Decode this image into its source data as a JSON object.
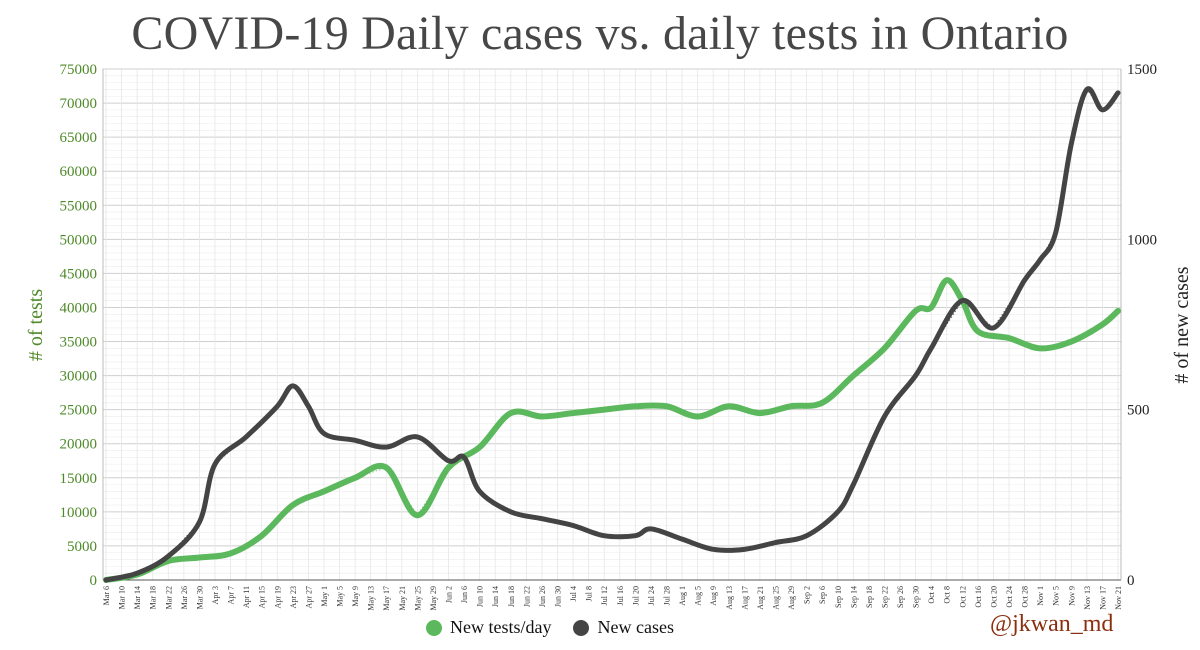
{
  "chart_data": {
    "type": "line",
    "title": "COVID-19 Daily cases vs. daily tests in Ontario",
    "ylabel_left": "# of tests",
    "ylabel_right": "# of new cases",
    "ylim_left": [
      0,
      75000
    ],
    "ylim_right": [
      0,
      1500
    ],
    "yticks_left": [
      "0",
      "5000",
      "10000",
      "15000",
      "20000",
      "25000",
      "30000",
      "35000",
      "40000",
      "45000",
      "50000",
      "55000",
      "60000",
      "65000",
      "70000",
      "75000"
    ],
    "yticks_right": [
      "0",
      "500",
      "1000",
      "1500"
    ],
    "x_labels": [
      "Mar 6",
      "Mar 10",
      "Mar 14",
      "Mar 18",
      "Mar 22",
      "Mar 26",
      "Mar 30",
      "Apr 3",
      "Apr 7",
      "Apr 11",
      "Apr 15",
      "Apr 19",
      "Apr 23",
      "Apr 27",
      "May 1",
      "May 5",
      "May 9",
      "May 13",
      "May 17",
      "May 21",
      "May 25",
      "May 29",
      "Jun 2",
      "Jun 6",
      "Jun 10",
      "Jun 14",
      "Jun 18",
      "Jun 22",
      "Jun 26",
      "Jun 30",
      "Jul 4",
      "Jul 8",
      "Jul 12",
      "Jul 16",
      "Jul 20",
      "Jul 24",
      "Jul 28",
      "Aug 1",
      "Aug 5",
      "Aug 9",
      "Aug 13",
      "Aug 17",
      "Aug 21",
      "Aug 25",
      "Aug 29",
      "Sep 2",
      "Sep 6",
      "Sep 10",
      "Sep 14",
      "Sep 18",
      "Sep 22",
      "Sep 26",
      "Sep 30",
      "Oct 4",
      "Oct 8",
      "Oct 12",
      "Oct 16",
      "Oct 20",
      "Oct 24",
      "Oct 28",
      "Nov 1",
      "Nov 5",
      "Nov 9",
      "Nov 13",
      "Nov 17",
      "Nov 21"
    ],
    "grid": true,
    "legend_position": "bottom",
    "series": [
      {
        "name": "New tests/day",
        "axis": "left",
        "color": "#5cb85c",
        "dates": [
          "Mar 6",
          "Mar 14",
          "Mar 22",
          "Mar 30",
          "Apr 7",
          "Apr 15",
          "Apr 23",
          "May 1",
          "May 9",
          "May 17",
          "May 25",
          "Jun 2",
          "Jun 10",
          "Jun 18",
          "Jun 26",
          "Jul 4",
          "Jul 12",
          "Jul 20",
          "Jul 28",
          "Aug 5",
          "Aug 13",
          "Aug 21",
          "Aug 29",
          "Sep 6",
          "Sep 14",
          "Sep 22",
          "Sep 30",
          "Oct 4",
          "Oct 8",
          "Oct 12",
          "Oct 16",
          "Oct 24",
          "Nov 1",
          "Nov 9",
          "Nov 17",
          "Nov 21"
        ],
        "values": [
          0,
          800,
          2800,
          3300,
          3900,
          6500,
          11000,
          13000,
          15000,
          16500,
          9500,
          16500,
          19500,
          24500,
          24000,
          24500,
          25000,
          25500,
          25500,
          24000,
          25500,
          24500,
          25500,
          26000,
          30000,
          34000,
          39500,
          40000,
          44000,
          41000,
          36500,
          35500,
          34000,
          35000,
          37500,
          39500
        ]
      },
      {
        "name": "New cases",
        "axis": "right",
        "color": "#444444",
        "dates": [
          "Mar 6",
          "Mar 14",
          "Mar 22",
          "Mar 30",
          "Apr 3",
          "Apr 11",
          "Apr 19",
          "Apr 23",
          "Apr 27",
          "May 1",
          "May 9",
          "May 17",
          "May 25",
          "Jun 2",
          "Jun 6",
          "Jun 10",
          "Jun 18",
          "Jun 26",
          "Jul 4",
          "Jul 12",
          "Jul 20",
          "Jul 24",
          "Aug 1",
          "Aug 9",
          "Aug 17",
          "Aug 25",
          "Sep 2",
          "Sep 10",
          "Sep 14",
          "Sep 22",
          "Sep 30",
          "Oct 4",
          "Oct 12",
          "Oct 20",
          "Oct 28",
          "Nov 1",
          "Nov 5",
          "Nov 9",
          "Nov 13",
          "Nov 17",
          "Nov 21"
        ],
        "values": [
          0,
          20,
          70,
          170,
          340,
          420,
          510,
          570,
          510,
          430,
          410,
          390,
          420,
          350,
          360,
          260,
          200,
          180,
          160,
          130,
          130,
          150,
          120,
          90,
          90,
          110,
          130,
          200,
          280,
          480,
          600,
          680,
          820,
          740,
          880,
          940,
          1020,
          1280,
          1440,
          1380,
          1430
        ]
      }
    ]
  },
  "legend": {
    "tests_label": "New tests/day",
    "cases_label": "New cases"
  },
  "credit": "@jkwan_md"
}
